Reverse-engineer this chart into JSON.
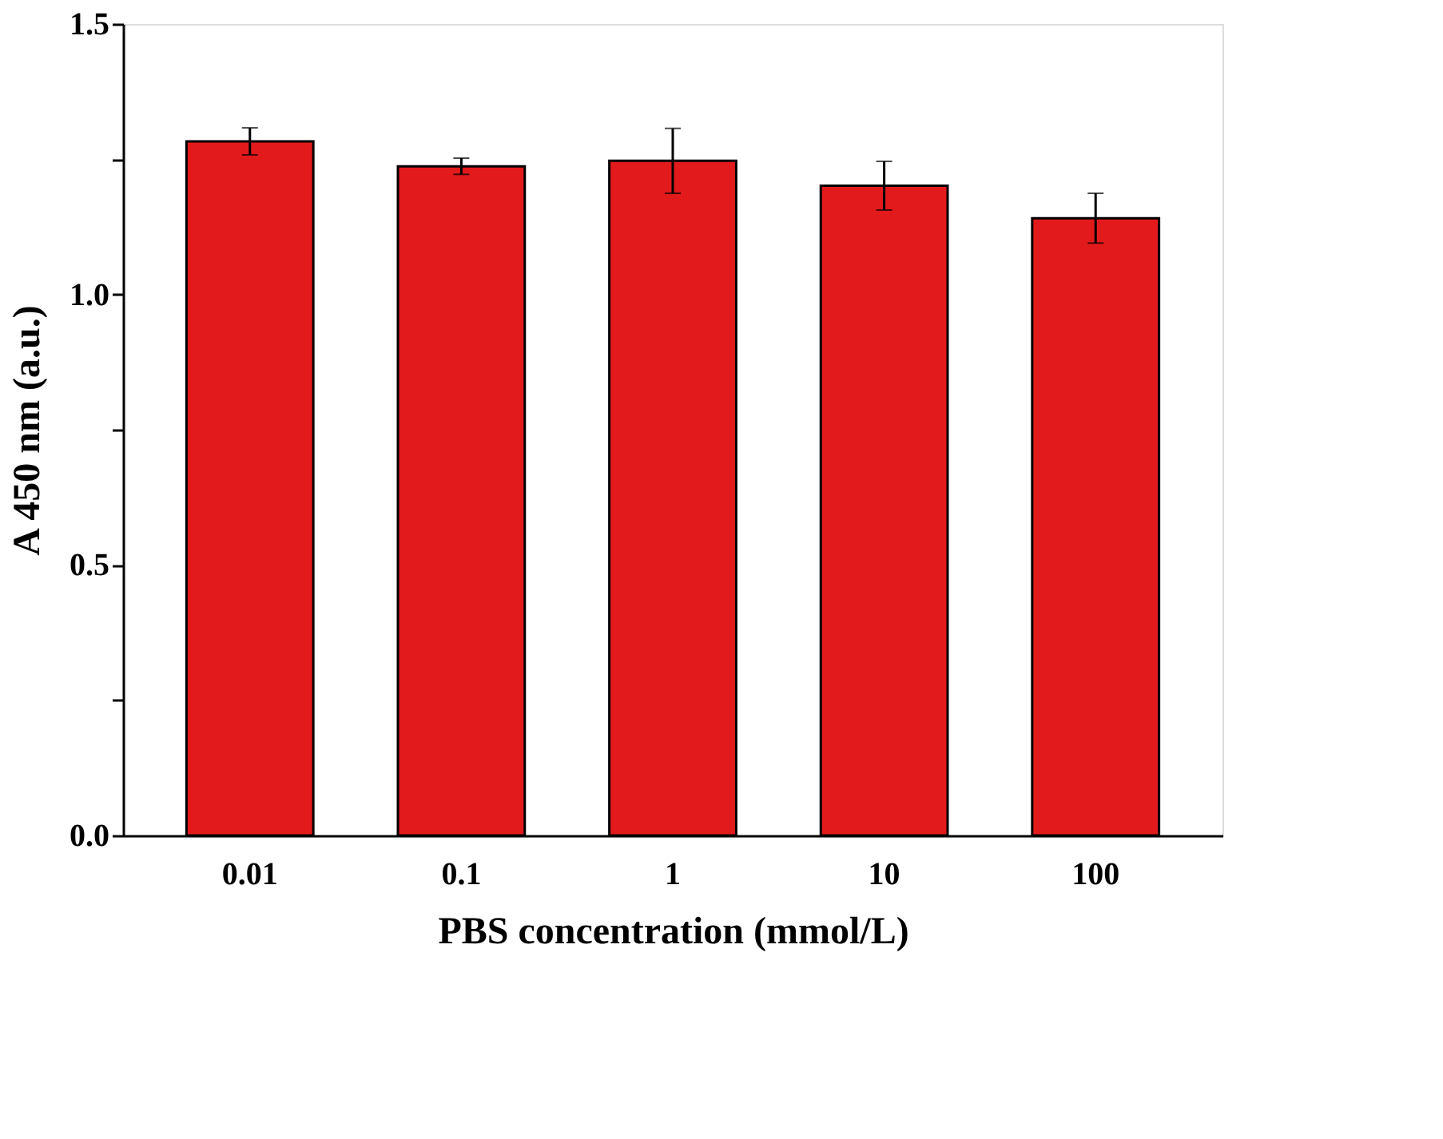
{
  "chart_data": {
    "type": "bar",
    "xlabel": "PBS concentration (mmol/L)",
    "ylabel": "A 450 nm (a.u.)",
    "categories": [
      "0.01",
      "0.1",
      "1",
      "10",
      "100"
    ],
    "values": [
      1.283,
      1.237,
      1.247,
      1.201,
      1.141
    ],
    "errors": [
      0.025,
      0.015,
      0.06,
      0.045,
      0.046
    ],
    "color": "#e31a1c",
    "ylim": [
      0,
      1.5
    ],
    "yticks": [
      {
        "value": 0,
        "label": "0.0"
      },
      {
        "value": 0.25,
        "label": null
      },
      {
        "value": 0.5,
        "label": "0.5"
      },
      {
        "value": 0.75,
        "label": null
      },
      {
        "value": 1.0,
        "label": "1.0"
      },
      {
        "value": 1.25,
        "label": null
      },
      {
        "value": 1.5,
        "label": "1.5"
      }
    ],
    "grid": false
  }
}
